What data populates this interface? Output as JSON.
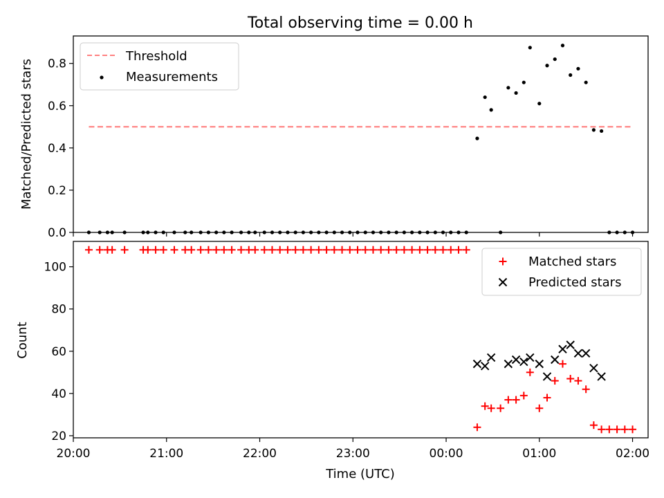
{
  "figure": {
    "title": "Total observing time = 0.00 h"
  },
  "chart_data": [
    {
      "type": "scatter",
      "title": "Total observing time = 0.00 h",
      "ylabel": "Matched/Predicted stars",
      "xlabel": "",
      "xlim": [
        "20:00",
        "02:10"
      ],
      "ylim": [
        0,
        0.93
      ],
      "yticks": [
        0.0,
        0.2,
        0.4,
        0.6,
        0.8
      ],
      "ytick_labels": [
        "0.0",
        "0.2",
        "0.4",
        "0.6",
        "0.8"
      ],
      "legend_position": "top-left",
      "threshold": {
        "name": "Threshold",
        "value": 0.5,
        "x_start": "20:10",
        "x_end": "02:00",
        "color": "#ff7f7f"
      },
      "series": [
        {
          "name": "Measurements",
          "color": "#000000",
          "points": [
            [
              "20:10",
              0
            ],
            [
              "20:17",
              0
            ],
            [
              "20:22",
              0
            ],
            [
              "20:25",
              0
            ],
            [
              "20:33",
              0
            ],
            [
              "20:45",
              0
            ],
            [
              "20:48",
              0
            ],
            [
              "20:53",
              0
            ],
            [
              "20:58",
              0
            ],
            [
              "21:05",
              0
            ],
            [
              "21:12",
              0
            ],
            [
              "21:16",
              0
            ],
            [
              "21:22",
              0
            ],
            [
              "21:27",
              0
            ],
            [
              "21:32",
              0
            ],
            [
              "21:37",
              0
            ],
            [
              "21:42",
              0
            ],
            [
              "21:48",
              0
            ],
            [
              "21:53",
              0
            ],
            [
              "21:57",
              0
            ],
            [
              "22:03",
              0
            ],
            [
              "22:08",
              0
            ],
            [
              "22:13",
              0
            ],
            [
              "22:18",
              0
            ],
            [
              "22:23",
              0
            ],
            [
              "22:28",
              0
            ],
            [
              "22:33",
              0
            ],
            [
              "22:38",
              0
            ],
            [
              "22:43",
              0
            ],
            [
              "22:48",
              0
            ],
            [
              "22:53",
              0
            ],
            [
              "22:58",
              0
            ],
            [
              "23:03",
              0
            ],
            [
              "23:08",
              0
            ],
            [
              "23:13",
              0
            ],
            [
              "23:18",
              0
            ],
            [
              "23:23",
              0
            ],
            [
              "23:28",
              0
            ],
            [
              "23:33",
              0
            ],
            [
              "23:38",
              0
            ],
            [
              "23:43",
              0
            ],
            [
              "23:48",
              0
            ],
            [
              "23:53",
              0
            ],
            [
              "23:58",
              0
            ],
            [
              "00:03",
              0
            ],
            [
              "00:08",
              0
            ],
            [
              "00:13",
              0
            ],
            [
              "00:20",
              0.445
            ],
            [
              "00:25",
              0.64
            ],
            [
              "00:29",
              0.58
            ],
            [
              "00:35",
              0
            ],
            [
              "00:40",
              0.685
            ],
            [
              "00:45",
              0.66
            ],
            [
              "00:50",
              0.71
            ],
            [
              "00:54",
              0.875
            ],
            [
              "01:00",
              0.61
            ],
            [
              "01:05",
              0.79
            ],
            [
              "01:10",
              0.82
            ],
            [
              "01:15",
              0.885
            ],
            [
              "01:20",
              0.745
            ],
            [
              "01:25",
              0.775
            ],
            [
              "01:30",
              0.71
            ],
            [
              "01:35",
              0.485
            ],
            [
              "01:40",
              0.48
            ],
            [
              "01:45",
              0
            ],
            [
              "01:50",
              0
            ],
            [
              "01:55",
              0
            ],
            [
              "02:00",
              0
            ]
          ]
        }
      ]
    },
    {
      "type": "scatter",
      "title": "",
      "xlabel": "Time (UTC)",
      "ylabel": "Count",
      "xlim": [
        "20:00",
        "02:10"
      ],
      "ylim": [
        19,
        112
      ],
      "xticks": [
        "20:00",
        "21:00",
        "22:00",
        "23:00",
        "00:00",
        "01:00",
        "02:00"
      ],
      "yticks": [
        20,
        40,
        60,
        80,
        100
      ],
      "ytick_labels": [
        "20",
        "40",
        "60",
        "80",
        "100"
      ],
      "legend_position": "top-right",
      "series": [
        {
          "name": "Matched stars",
          "marker": "plus",
          "color": "#ff0000",
          "points": [
            [
              "20:10",
              108
            ],
            [
              "20:17",
              108
            ],
            [
              "20:22",
              108
            ],
            [
              "20:25",
              108
            ],
            [
              "20:33",
              108
            ],
            [
              "20:45",
              108
            ],
            [
              "20:48",
              108
            ],
            [
              "20:53",
              108
            ],
            [
              "20:58",
              108
            ],
            [
              "21:05",
              108
            ],
            [
              "21:12",
              108
            ],
            [
              "21:16",
              108
            ],
            [
              "21:22",
              108
            ],
            [
              "21:27",
              108
            ],
            [
              "21:32",
              108
            ],
            [
              "21:37",
              108
            ],
            [
              "21:42",
              108
            ],
            [
              "21:48",
              108
            ],
            [
              "21:53",
              108
            ],
            [
              "21:57",
              108
            ],
            [
              "22:03",
              108
            ],
            [
              "22:08",
              108
            ],
            [
              "22:13",
              108
            ],
            [
              "22:18",
              108
            ],
            [
              "22:23",
              108
            ],
            [
              "22:28",
              108
            ],
            [
              "22:33",
              108
            ],
            [
              "22:38",
              108
            ],
            [
              "22:43",
              108
            ],
            [
              "22:48",
              108
            ],
            [
              "22:53",
              108
            ],
            [
              "22:58",
              108
            ],
            [
              "23:03",
              108
            ],
            [
              "23:08",
              108
            ],
            [
              "23:13",
              108
            ],
            [
              "23:18",
              108
            ],
            [
              "23:23",
              108
            ],
            [
              "23:28",
              108
            ],
            [
              "23:33",
              108
            ],
            [
              "23:38",
              108
            ],
            [
              "23:43",
              108
            ],
            [
              "23:48",
              108
            ],
            [
              "23:53",
              108
            ],
            [
              "23:58",
              108
            ],
            [
              "00:03",
              108
            ],
            [
              "00:08",
              108
            ],
            [
              "00:13",
              108
            ],
            [
              "00:20",
              24
            ],
            [
              "00:25",
              34
            ],
            [
              "00:29",
              33
            ],
            [
              "00:35",
              33
            ],
            [
              "00:40",
              37
            ],
            [
              "00:45",
              37
            ],
            [
              "00:50",
              39
            ],
            [
              "00:54",
              50
            ],
            [
              "01:00",
              33
            ],
            [
              "01:05",
              38
            ],
            [
              "01:10",
              46
            ],
            [
              "01:15",
              54
            ],
            [
              "01:20",
              47
            ],
            [
              "01:25",
              46
            ],
            [
              "01:30",
              42
            ],
            [
              "01:35",
              25
            ],
            [
              "01:40",
              23
            ],
            [
              "01:45",
              23
            ],
            [
              "01:50",
              23
            ],
            [
              "01:55",
              23
            ],
            [
              "02:00",
              23
            ]
          ]
        },
        {
          "name": "Predicted stars",
          "marker": "x",
          "color": "#000000",
          "points": [
            [
              "00:20",
              54
            ],
            [
              "00:25",
              53
            ],
            [
              "00:29",
              57
            ],
            [
              "00:40",
              54
            ],
            [
              "00:45",
              56
            ],
            [
              "00:50",
              55
            ],
            [
              "00:54",
              57
            ],
            [
              "01:00",
              54
            ],
            [
              "01:05",
              48
            ],
            [
              "01:10",
              56
            ],
            [
              "01:15",
              61
            ],
            [
              "01:20",
              63
            ],
            [
              "01:25",
              59
            ],
            [
              "01:30",
              59
            ],
            [
              "01:35",
              52
            ],
            [
              "01:40",
              48
            ]
          ]
        }
      ]
    }
  ]
}
